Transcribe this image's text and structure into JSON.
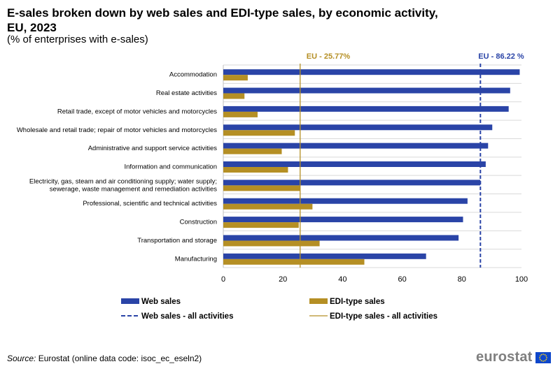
{
  "title": "E-sales broken down by web sales and EDI-type sales, by economic activity, EU, 2023",
  "subtitle": "(% of enterprises with e-sales)",
  "source_label": "Source:",
  "source_text": "Eurostat (online data code: isoc_ec_eseln2)",
  "logo_text": "eurostat",
  "colors": {
    "web": "#2a44a7",
    "edi": "#b58f24",
    "grid": "#d9d9d9"
  },
  "chart_data": {
    "type": "bar",
    "orientation": "horizontal",
    "categories": [
      "Accommodation",
      "Real estate activities",
      "Retail trade, except of motor vehicles and motorcycles",
      "Wholesale and retail trade; repair of motor vehicles and motorcycles",
      "Administrative and support service activities",
      "Information and communication",
      "Electricity, gas, steam and air conditioning supply; water supply; sewerage, waste management and remediation activities",
      "Professional, scientific and technical activities",
      "Construction",
      "Transportation and storage",
      "Manufacturing"
    ],
    "category_lines": [
      [
        "Accommodation"
      ],
      [
        "Real estate activities"
      ],
      [
        "Retail trade, except of motor vehicles and motorcycles"
      ],
      [
        "Wholesale and retail trade; repair of motor vehicles and motorcycles"
      ],
      [
        "Administrative and support service activities"
      ],
      [
        "Information and communication"
      ],
      [
        "Electricity, gas, steam and air conditioning supply; water supply;",
        "sewerage, waste management and remediation activities"
      ],
      [
        "Professional, scientific and technical activities"
      ],
      [
        "Construction"
      ],
      [
        "Transportation and storage"
      ],
      [
        "Manufacturing"
      ]
    ],
    "series": [
      {
        "name": "Web sales",
        "color": "#2a44a7",
        "values": [
          99.4,
          96.2,
          95.7,
          90.2,
          88.8,
          88.0,
          86.2,
          81.9,
          80.4,
          78.9,
          68.0
        ]
      },
      {
        "name": "EDI-type sales",
        "color": "#b58f24",
        "values": [
          8.2,
          7.1,
          11.5,
          24.0,
          19.6,
          21.7,
          25.8,
          29.9,
          25.3,
          32.3,
          47.3
        ]
      }
    ],
    "reference_lines": [
      {
        "name": "Web sales - all activities",
        "label": "EU - 86.22 %",
        "value": 86.22,
        "color": "#2a44a7",
        "style": "dashed"
      },
      {
        "name": "EDI-type sales  - all activities",
        "label": "EU - 25.77%",
        "value": 25.77,
        "color": "#b58f24",
        "style": "solid"
      }
    ],
    "xlim": [
      0,
      100
    ],
    "xticks": [
      0,
      20,
      40,
      60,
      80,
      100
    ],
    "grid": true,
    "legend_position": "bottom",
    "xlabel": "",
    "ylabel": ""
  }
}
